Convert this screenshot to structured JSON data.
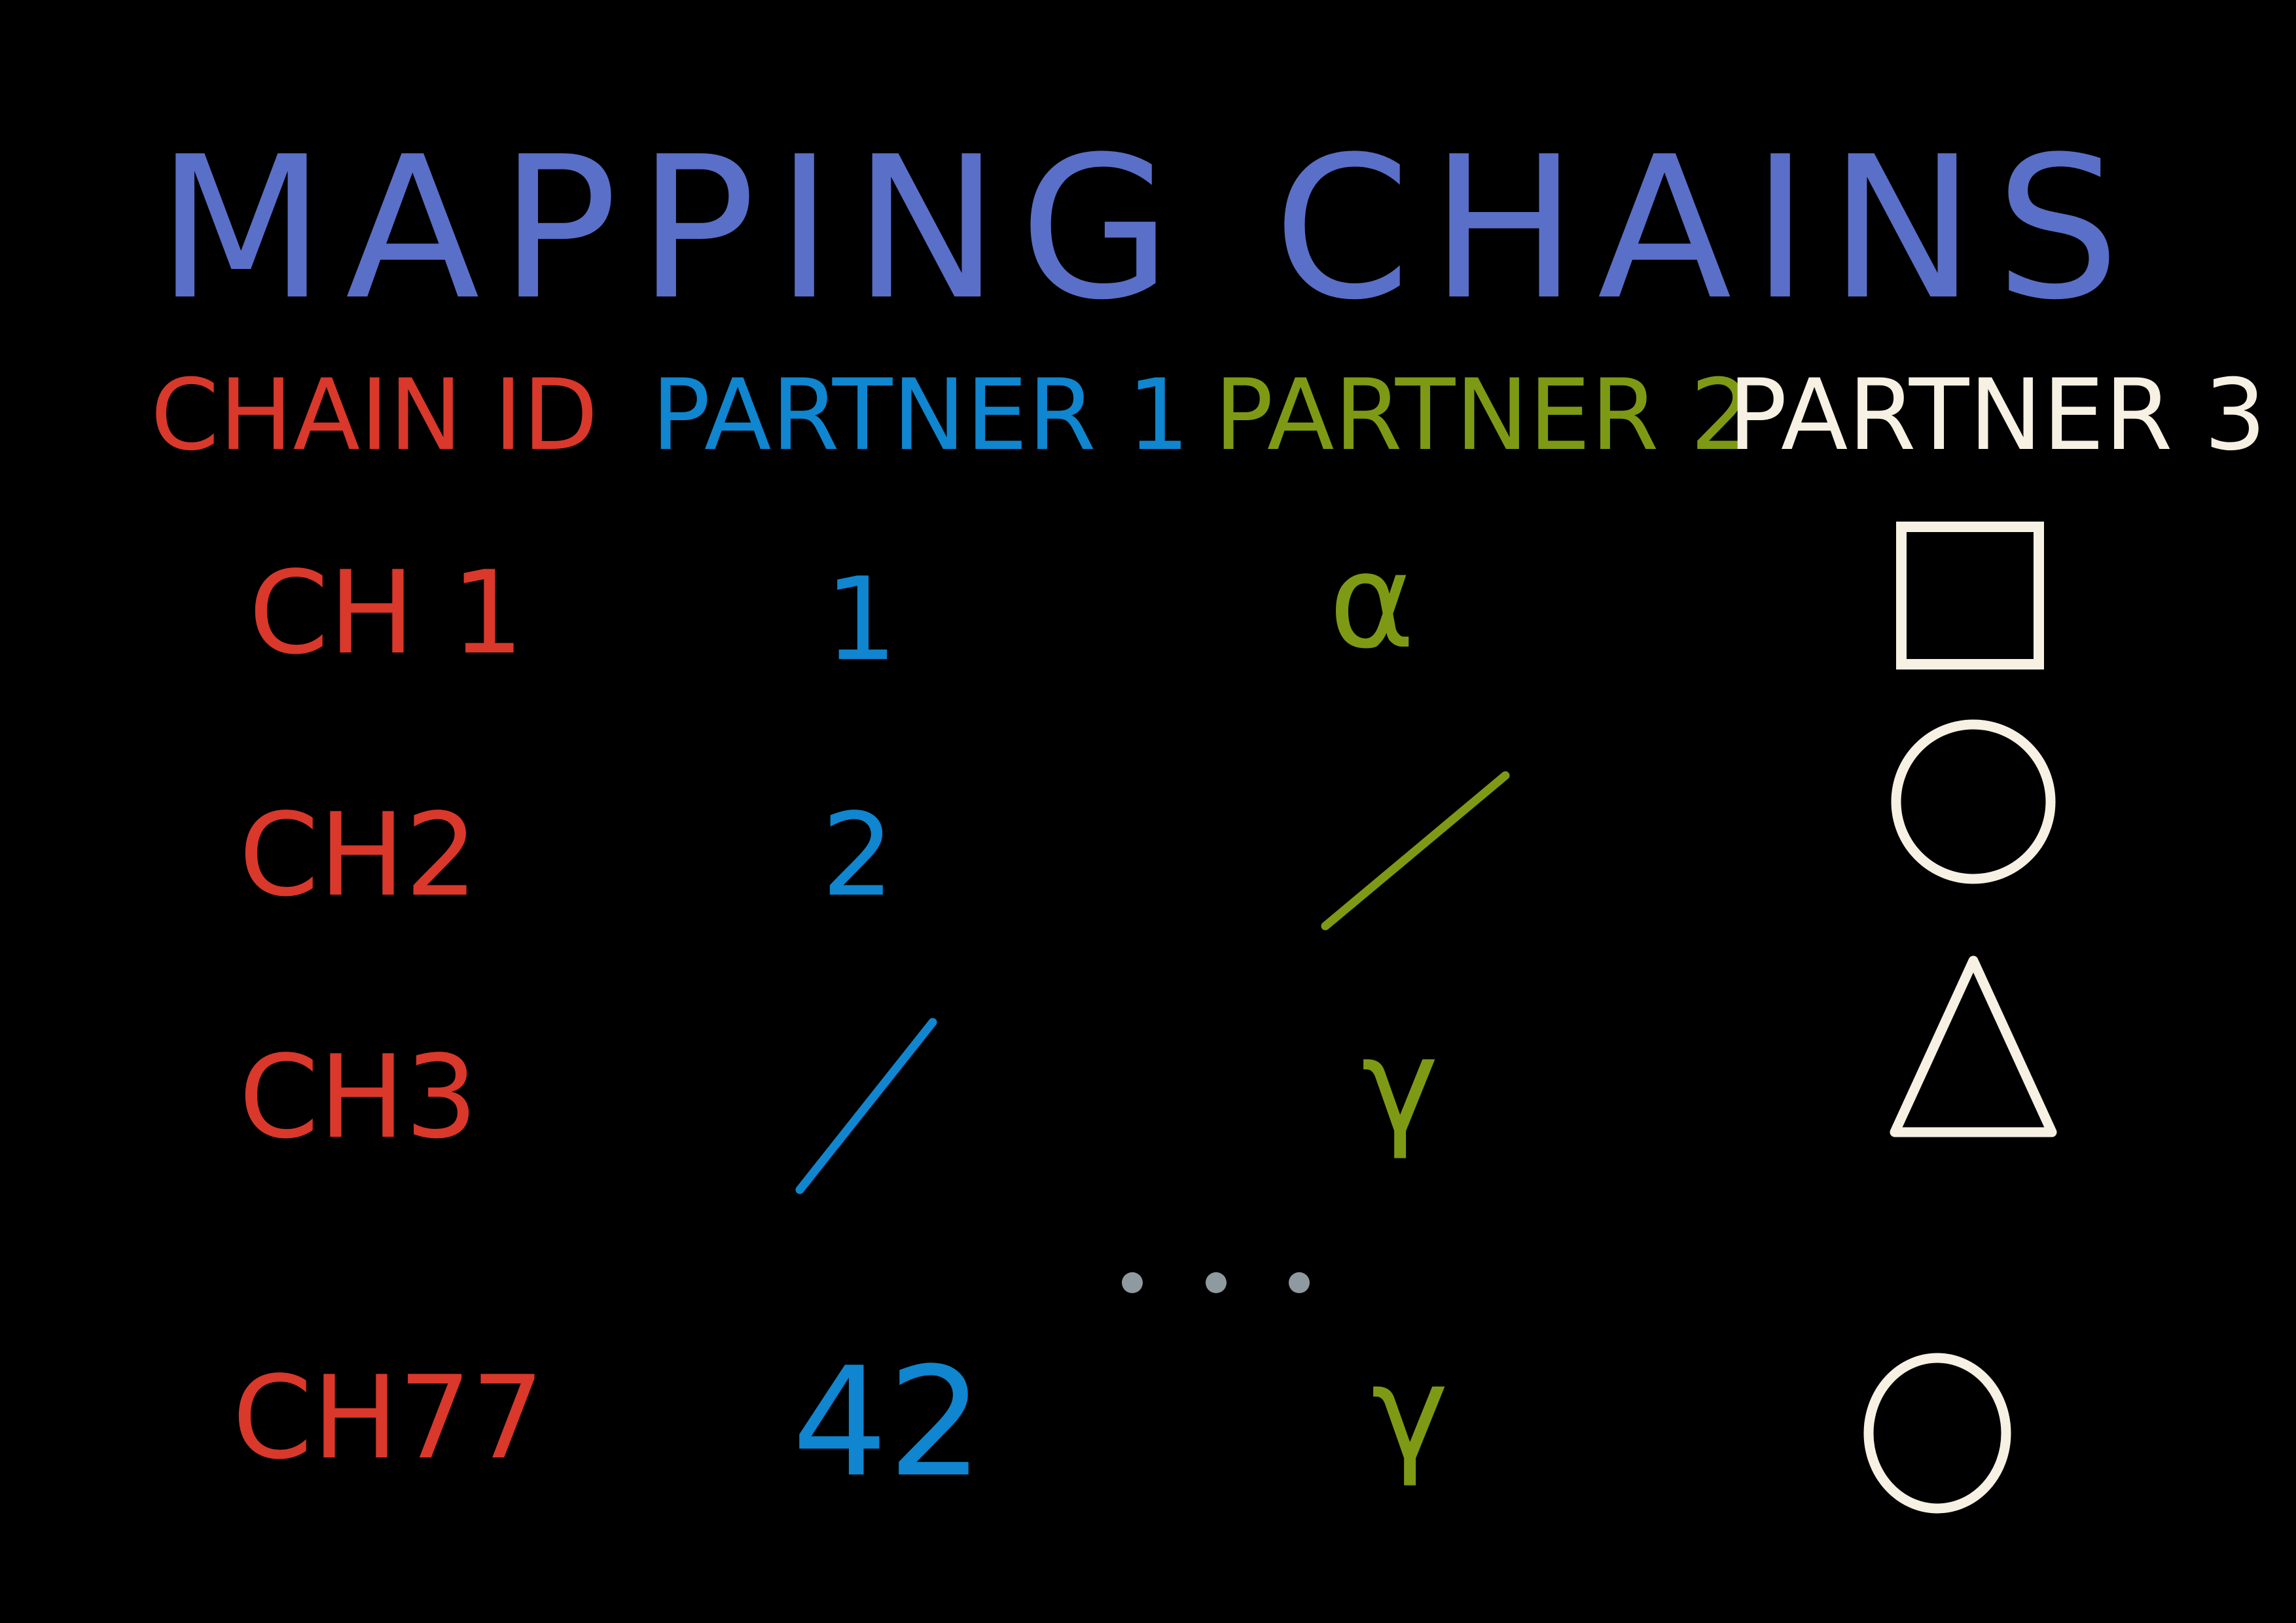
{
  "title": "MAPPING CHAINS",
  "colors": {
    "background": "#000000",
    "title": "#5a6fc7",
    "chain_id": "#d9382b",
    "partner_1": "#0f86cf",
    "partner_2": "#7e9a15",
    "partner_3": "#f7f1e3",
    "ellipsis": "#8e9aa0"
  },
  "headers": {
    "chain_id": "CHAIN ID",
    "partner_1": "PARTNER 1",
    "partner_2": "PARTNER 2",
    "partner_3": "PARTNER 3"
  },
  "rows": [
    {
      "chain_id": "CH 1",
      "partner_1": "1",
      "partner_2": "α",
      "partner_3_shape": "square"
    },
    {
      "chain_id": "CH2",
      "partner_1": "2",
      "partner_2_shape": "slash",
      "partner_3_shape": "circle"
    },
    {
      "chain_id": "CH3",
      "partner_1_shape": "slash",
      "partner_2": "γ",
      "partner_3_shape": "triangle"
    },
    {
      "chain_id": "CH77",
      "partner_1": "42",
      "partner_2": "γ",
      "partner_3_shape": "circle"
    }
  ],
  "ellipsis_shape": "three-dots"
}
